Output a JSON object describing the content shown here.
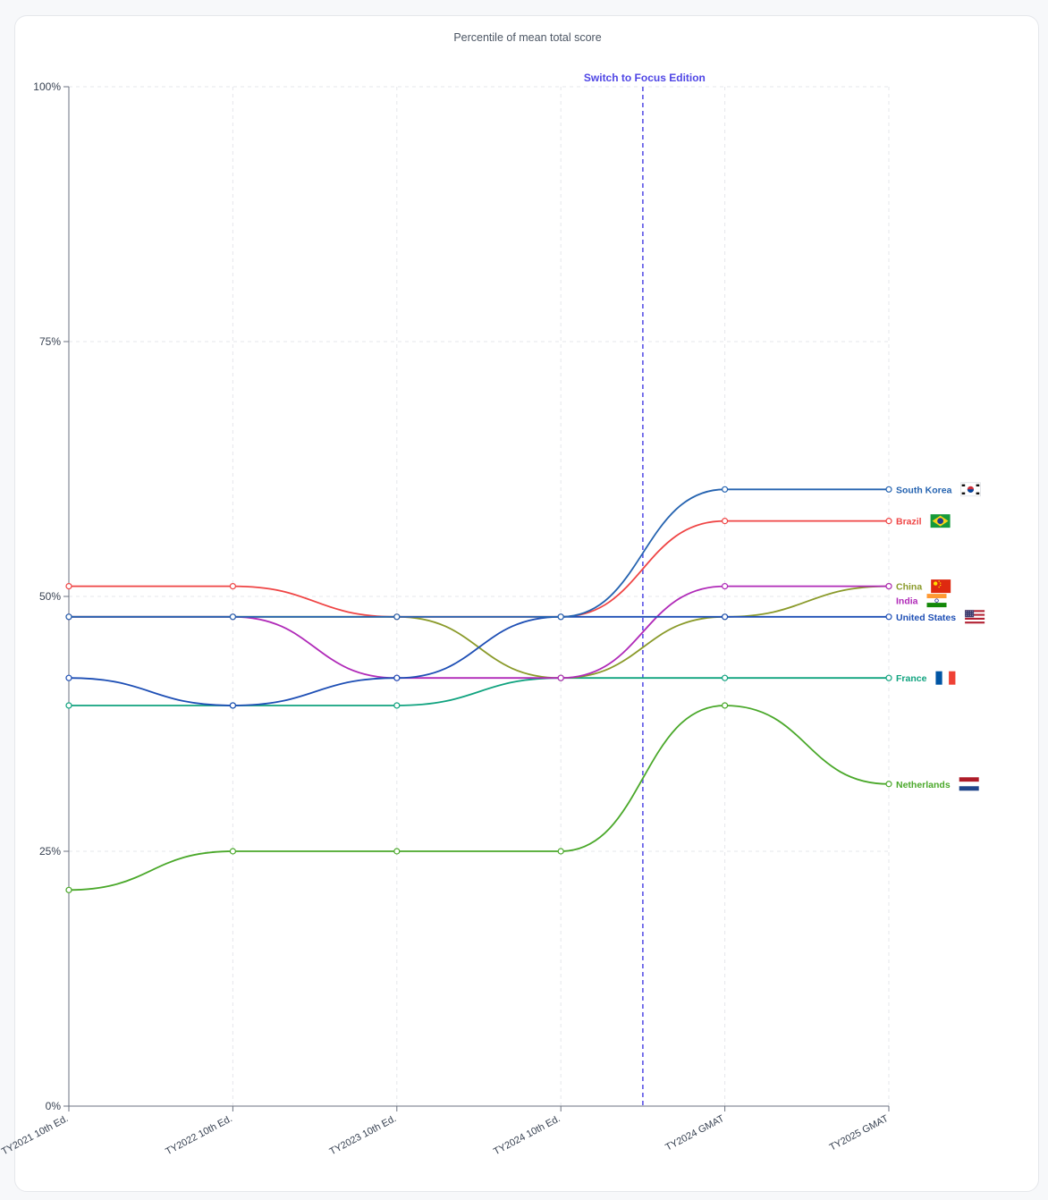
{
  "chart_data": {
    "type": "line",
    "title": "Percentile of mean total score",
    "categories": [
      "TY2021 10th Ed.",
      "TY2022 10th Ed.",
      "TY2023 10th Ed.",
      "TY2024 10th Ed.",
      "TY2024 GMAT",
      "TY2025 GMAT"
    ],
    "ylim": [
      0,
      100
    ],
    "yticks": [
      {
        "value": 0,
        "label": "0%"
      },
      {
        "value": 25,
        "label": "25%"
      },
      {
        "value": 50,
        "label": "50%"
      },
      {
        "value": 75,
        "label": "75%"
      },
      {
        "value": 100,
        "label": "100%"
      }
    ],
    "grid": true,
    "curve": "smooth",
    "annotations": [
      {
        "type": "vertical-dashed-line",
        "between": [
          "TY2024 10th Ed.",
          "TY2024 GMAT"
        ],
        "position": 3.5,
        "label": "Switch to Focus Edition",
        "color": "#4f46e5"
      }
    ],
    "series": [
      {
        "name": "South Korea",
        "flag": "south-korea-flag",
        "color": "#2563b0",
        "values": [
          48,
          48,
          48,
          48,
          60.5,
          60.5
        ]
      },
      {
        "name": "Brazil",
        "flag": "brazil-flag",
        "color": "#ef4444",
        "values": [
          51,
          51,
          48,
          48,
          57.4,
          57.4
        ]
      },
      {
        "name": "China",
        "flag": "china-flag",
        "color": "#8a9a2a",
        "values": [
          48,
          48,
          48,
          42,
          48,
          51
        ]
      },
      {
        "name": "India",
        "flag": "india-flag",
        "color": "#b02ab8",
        "values": [
          48,
          48,
          42,
          42,
          51,
          51
        ]
      },
      {
        "name": "United States",
        "flag": "united-states-flag",
        "color": "#1e4fb5",
        "values": [
          42,
          39.3,
          42,
          48,
          48,
          48
        ]
      },
      {
        "name": "France",
        "flag": "france-flag",
        "color": "#10a37f",
        "values": [
          39.3,
          39.3,
          39.3,
          42,
          42,
          42
        ]
      },
      {
        "name": "Netherlands",
        "flag": "netherlands-flag",
        "color": "#4aa82a",
        "values": [
          21.2,
          25,
          25,
          25,
          39.3,
          31.6
        ]
      }
    ],
    "label_order": [
      "South Korea",
      "Brazil",
      "China",
      "India",
      "United States",
      "France",
      "Netherlands"
    ]
  },
  "colors": {
    "grid": "#e5e7eb",
    "axis": "#6b7280",
    "annotation": "#4f46e5"
  }
}
